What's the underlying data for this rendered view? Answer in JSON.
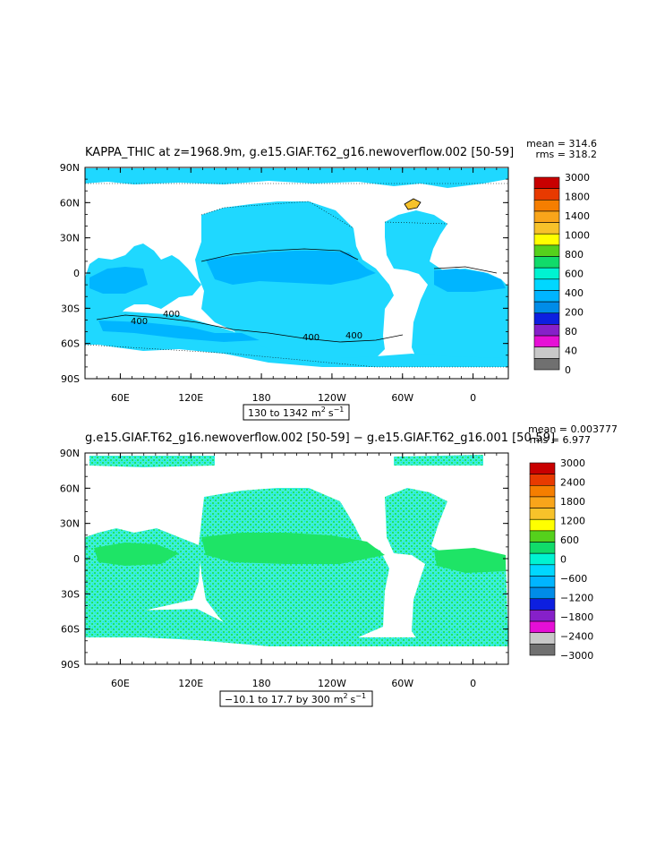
{
  "panel1": {
    "title": "KAPPA_THIC at z=1968.9m, g.e15.GIAF.T62_g16.newoverflow.002 [50-59]",
    "mean_text": "mean = 314.6",
    "rms_text": "rms = 318.2",
    "range_text": "130 to 1342",
    "units_base": "m",
    "units_exp1": "2",
    "units_mid": "s",
    "units_exp2": "−1",
    "contour_labels": [
      "400",
      "400",
      "400",
      "400"
    ],
    "colorbar": {
      "labels": [
        "3000",
        "1800",
        "1400",
        "1000",
        "800",
        "600",
        "400",
        "200",
        "80",
        "40",
        "0"
      ],
      "colors": [
        "#c80000",
        "#e83a00",
        "#f57e00",
        "#f9a51a",
        "#f7c22a",
        "#ffff00",
        "#55d11c",
        "#11db6a",
        "#00f3d1",
        "#00d7ff",
        "#00b5ff",
        "#008ce8",
        "#0d1fe0",
        "#8620c9",
        "#e60fd6",
        "#c8c8c8",
        "#707070"
      ]
    }
  },
  "panel2": {
    "title": "g.e15.GIAF.T62_g16.newoverflow.002 [50-59] − g.e15.GIAF.T62_g16.001 [50-59]",
    "mean_text": "mean = 0.003777",
    "rms_text": "rms = 6.977",
    "range_text": "−10.1 to 17.7 by 300",
    "units_base": "m",
    "units_exp1": "2",
    "units_mid": "s",
    "units_exp2": "−1",
    "colorbar": {
      "labels": [
        "3000",
        "2400",
        "1800",
        "1200",
        "600",
        "0",
        "−600",
        "−1200",
        "−1800",
        "−2400",
        "−3000"
      ],
      "colors": [
        "#c80000",
        "#e83a00",
        "#f57e00",
        "#f9a51a",
        "#f7c22a",
        "#ffff00",
        "#55d11c",
        "#11db6a",
        "#00f3d1",
        "#00d7ff",
        "#00b5ff",
        "#008ce8",
        "#0d1fe0",
        "#8620c9",
        "#e60fd6",
        "#c8c8c8",
        "#707070"
      ]
    }
  },
  "axes": {
    "lat_labels": [
      "90N",
      "60N",
      "30N",
      "0",
      "30S",
      "60S",
      "90S"
    ],
    "lon_labels": [
      "60E",
      "120E",
      "180",
      "120W",
      "60W",
      "0"
    ]
  },
  "colors": {
    "ocean_main": "#1fd8ff",
    "ocean_deep": "#00b5ff",
    "diff_cyan": "#3ef0d6",
    "diff_green": "#1ee466"
  }
}
